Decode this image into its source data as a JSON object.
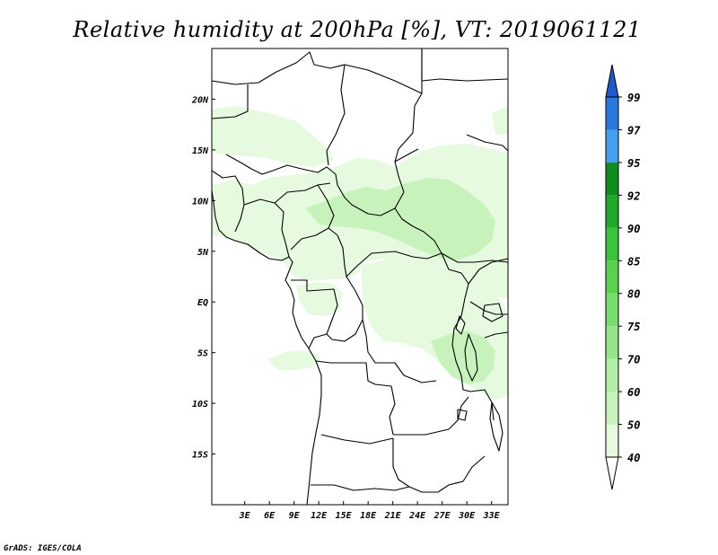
{
  "title": "Relative humidity at 200hPa [%], VT: 2019061121",
  "credit": "GrADS: IGES/COLA",
  "map": {
    "lon_range": [
      -1,
      35
    ],
    "lat_range": [
      -20,
      25
    ],
    "x_ticks": [
      {
        "lon": 3,
        "label": "3E"
      },
      {
        "lon": 6,
        "label": "6E"
      },
      {
        "lon": 9,
        "label": "9E"
      },
      {
        "lon": 12,
        "label": "12E"
      },
      {
        "lon": 15,
        "label": "15E"
      },
      {
        "lon": 18,
        "label": "18E"
      },
      {
        "lon": 21,
        "label": "21E"
      },
      {
        "lon": 24,
        "label": "24E"
      },
      {
        "lon": 27,
        "label": "27E"
      },
      {
        "lon": 30,
        "label": "30E"
      },
      {
        "lon": 33,
        "label": "33E"
      }
    ],
    "y_ticks": [
      {
        "lat": 20,
        "label": "20N"
      },
      {
        "lat": 15,
        "label": "15N"
      },
      {
        "lat": 10,
        "label": "10N"
      },
      {
        "lat": 5,
        "label": "5N"
      },
      {
        "lat": 0,
        "label": "EQ"
      },
      {
        "lat": -5,
        "label": "5S"
      },
      {
        "lat": -10,
        "label": "10S"
      },
      {
        "lat": -15,
        "label": "15S"
      }
    ]
  },
  "colorbar": {
    "levels": [
      "40",
      "50",
      "60",
      "70",
      "75",
      "80",
      "85",
      "90",
      "92",
      "95",
      "97",
      "99"
    ],
    "colors": [
      "#ffffff",
      "#e6fae0",
      "#c8f2bc",
      "#b4ecaa",
      "#96e48a",
      "#78dc6e",
      "#5ad250",
      "#3cc23c",
      "#22a82a",
      "#118c1e",
      "#46a0f0",
      "#2a78dc",
      "#1e5ac8"
    ]
  },
  "humidity_colors": {
    "light": "#e6fae0",
    "medium": "#c8f2bc",
    "strong": "#b4ecaa"
  }
}
